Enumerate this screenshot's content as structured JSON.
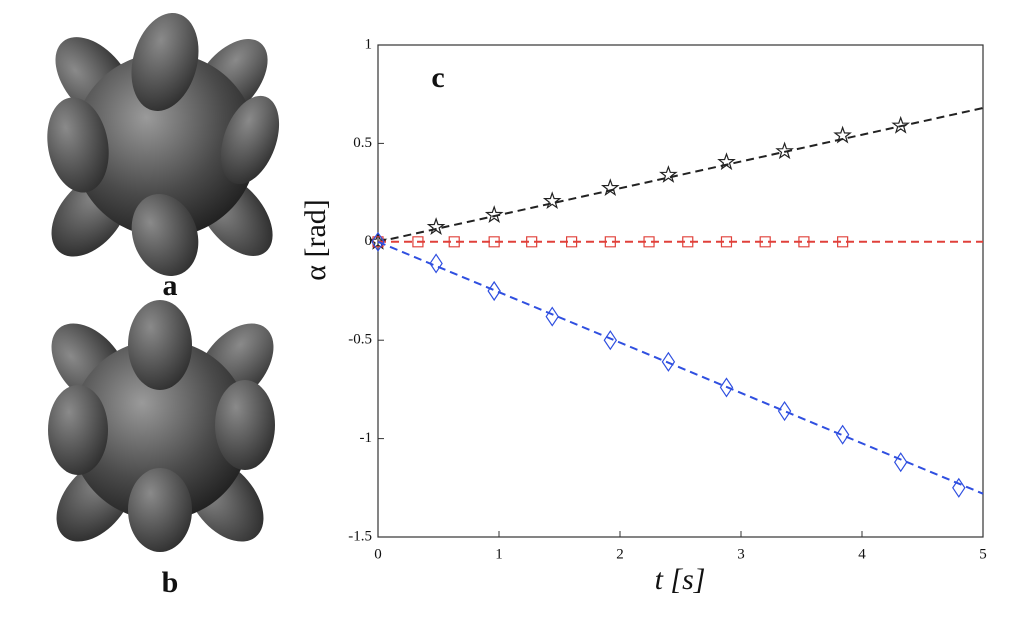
{
  "panel_labels": [
    "a",
    "b"
  ],
  "chart_data": {
    "type": "line",
    "annotation": "c",
    "xlabel": "t [s]",
    "ylabel": "α [rad]",
    "xlim": [
      0,
      5
    ],
    "ylim": [
      -1.5,
      1
    ],
    "xticks": [
      0,
      1,
      2,
      3,
      4,
      5
    ],
    "yticks": [
      -1.5,
      -1,
      -0.5,
      0,
      0.5,
      1
    ],
    "series": [
      {
        "color": "#222222",
        "marker": "star",
        "x": [
          0,
          0.48,
          0.96,
          1.44,
          1.92,
          2.4,
          2.88,
          3.36,
          3.84,
          4.32
        ],
        "values": [
          0,
          0.075,
          0.136,
          0.207,
          0.273,
          0.34,
          0.405,
          0.46,
          0.54,
          0.59
        ],
        "line_x": [
          0,
          5
        ],
        "line_values": [
          0,
          0.68
        ]
      },
      {
        "color": "#e0403a",
        "marker": "square",
        "x": [
          0,
          0.33,
          0.63,
          0.96,
          1.27,
          1.6,
          1.92,
          2.24,
          2.56,
          2.88,
          3.2,
          3.52,
          3.84
        ],
        "values": [
          0,
          0,
          0,
          0,
          0,
          0,
          0,
          0,
          0,
          0,
          0,
          0,
          0
        ],
        "line_x": [
          0,
          5
        ],
        "line_values": [
          0,
          0
        ]
      },
      {
        "color": "#2f4fe0",
        "marker": "diamond",
        "x": [
          0,
          0.48,
          0.96,
          1.44,
          1.92,
          2.4,
          2.88,
          3.36,
          3.84,
          4.32,
          4.8
        ],
        "values": [
          0,
          -0.11,
          -0.25,
          -0.38,
          -0.5,
          -0.61,
          -0.74,
          -0.86,
          -0.98,
          -1.12,
          -1.25
        ],
        "line_x": [
          0,
          5
        ],
        "line_values": [
          0,
          -1.28
        ]
      }
    ]
  }
}
